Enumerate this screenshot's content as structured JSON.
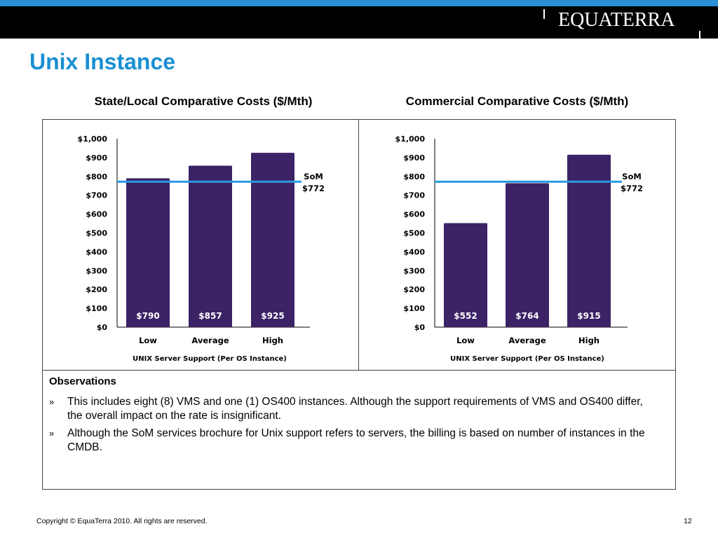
{
  "header": {
    "logo_text": "EQUATERRA",
    "page_title": "Unix Instance"
  },
  "colors": {
    "bar": "#3b2366",
    "som_line": "#2a9ae0",
    "title_blue": "#1a8fd2"
  },
  "chart_data": [
    {
      "type": "bar",
      "title": "State/Local Comparative Costs ($/Mth)",
      "xlabel": "UNIX Server Support  (Per OS Instance)",
      "ylabel": "",
      "categories": [
        "Low",
        "Average",
        "High"
      ],
      "values": [
        790,
        857,
        925
      ],
      "data_labels": [
        "$790",
        "$857",
        "$925"
      ],
      "ylim": [
        0,
        1000
      ],
      "y_ticks": [
        0,
        100,
        200,
        300,
        400,
        500,
        600,
        700,
        800,
        900,
        1000
      ],
      "y_tick_labels": [
        "$0",
        "$100",
        "$200",
        "$300",
        "$400",
        "$500",
        "$600",
        "$700",
        "$800",
        "$900",
        "$1,000"
      ],
      "reference_line": {
        "value": 772,
        "label_line1": "SoM",
        "label_line2": "$772"
      },
      "grid": false
    },
    {
      "type": "bar",
      "title": "Commercial Comparative Costs ($/Mth)",
      "xlabel": "UNIX Server Support  (Per OS Instance)",
      "ylabel": "",
      "categories": [
        "Low",
        "Average",
        "High"
      ],
      "values": [
        552,
        764,
        915
      ],
      "data_labels": [
        "$552",
        "$764",
        "$915"
      ],
      "ylim": [
        0,
        1000
      ],
      "y_ticks": [
        0,
        100,
        200,
        300,
        400,
        500,
        600,
        700,
        800,
        900,
        1000
      ],
      "y_tick_labels": [
        "$0",
        "$100",
        "$200",
        "$300",
        "$400",
        "$500",
        "$600",
        "$700",
        "$800",
        "$900",
        "$1,000"
      ],
      "reference_line": {
        "value": 772,
        "label_line1": "SoM",
        "label_line2": "$772"
      },
      "grid": false
    }
  ],
  "observations": {
    "title": "Observations",
    "bullet": "»",
    "items": [
      "This includes eight (8) VMS and one (1) OS400 instances.  Although the support requirements of VMS and OS400 differ, the overall impact on the rate is insignificant.",
      "Although the SoM services brochure for Unix support refers to servers, the billing is based on number of instances in the CMDB."
    ]
  },
  "footer": {
    "copyright": "Copyright © EquaTerra 2010.   All rights are reserved.",
    "page_number": "12"
  }
}
